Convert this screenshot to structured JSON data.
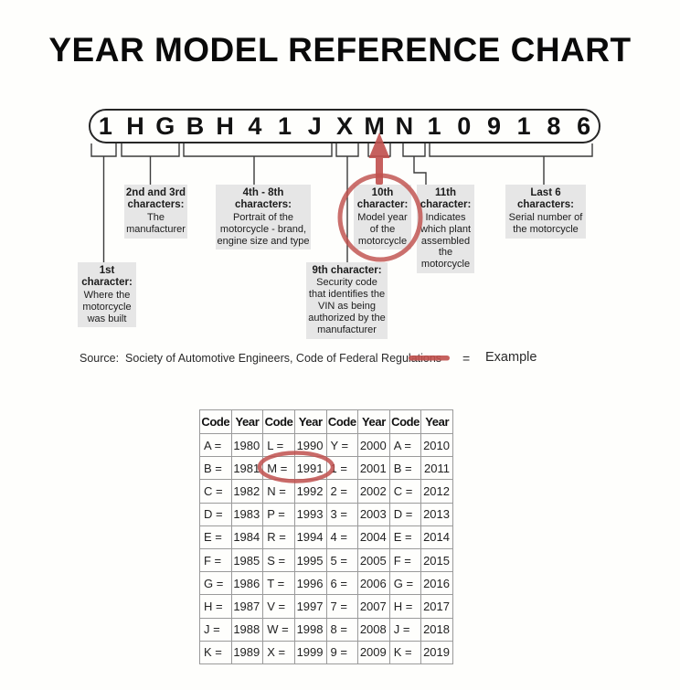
{
  "title": "YEAR MODEL REFERENCE CHART",
  "accent_color": "#c0504d",
  "vin": {
    "characters": [
      "1",
      "H",
      "G",
      "B",
      "H",
      "4",
      "1",
      "J",
      "X",
      "M",
      "N",
      "1",
      "0",
      "9",
      "1",
      "8",
      "6"
    ],
    "highlighted_character": "M"
  },
  "callouts": [
    {
      "heading": "1st\ncharacter:",
      "body": "Where the\nmotorcycle\nwas built"
    },
    {
      "heading": "2nd and 3rd\ncharacters:",
      "body": "The\nmanufacturer"
    },
    {
      "heading": "4th - 8th\ncharacters:",
      "body": "Portrait of the\nmotorcycle - brand,\nengine size and type"
    },
    {
      "heading": "9th character:",
      "body": "Security code\nthat identifies the\nVIN as being\nauthorized by the\nmanufacturer"
    },
    {
      "heading": "10th\ncharacter:",
      "body": "Model year\nof the\nmotorcycle"
    },
    {
      "heading": "11th\ncharacter:",
      "body": "Indicates\nwhich plant\nassembled\nthe\nmotorcycle"
    },
    {
      "heading": "Last 6\ncharacters:",
      "body": "Serial number of\nthe motorcycle"
    }
  ],
  "source_text": "Source:  Society of Automotive Engineers, Code of Federal Regulations",
  "legend": {
    "equals": "=",
    "label": "Example"
  },
  "year_table": {
    "headers": [
      "Code",
      "Year",
      "Code",
      "Year",
      "Code",
      "Year",
      "Code",
      "Year"
    ],
    "rows": [
      [
        "A =",
        "1980",
        "L =",
        "1990",
        "Y =",
        "2000",
        "A =",
        "2010"
      ],
      [
        "B =",
        "1981",
        "M =",
        "1991",
        "1 =",
        "2001",
        "B =",
        "2011"
      ],
      [
        "C =",
        "1982",
        "N =",
        "1992",
        "2 =",
        "2002",
        "C =",
        "2012"
      ],
      [
        "D =",
        "1983",
        "P =",
        "1993",
        "3 =",
        "2003",
        "D =",
        "2013"
      ],
      [
        "E =",
        "1984",
        "R =",
        "1994",
        "4 =",
        "2004",
        "E =",
        "2014"
      ],
      [
        "F =",
        "1985",
        "S =",
        "1995",
        "5 =",
        "2005",
        "F =",
        "2015"
      ],
      [
        "G =",
        "1986",
        "T =",
        "1996",
        "6 =",
        "2006",
        "G =",
        "2016"
      ],
      [
        "H =",
        "1987",
        "V =",
        "1997",
        "7 =",
        "2007",
        "H =",
        "2017"
      ],
      [
        "J =",
        "1988",
        "W =",
        "1998",
        "8 =",
        "2008",
        "J =",
        "2018"
      ],
      [
        "K =",
        "1989",
        "X =",
        "1999",
        "9 =",
        "2009",
        "K =",
        "2019"
      ]
    ],
    "highlighted_pair": "M = 1991"
  }
}
